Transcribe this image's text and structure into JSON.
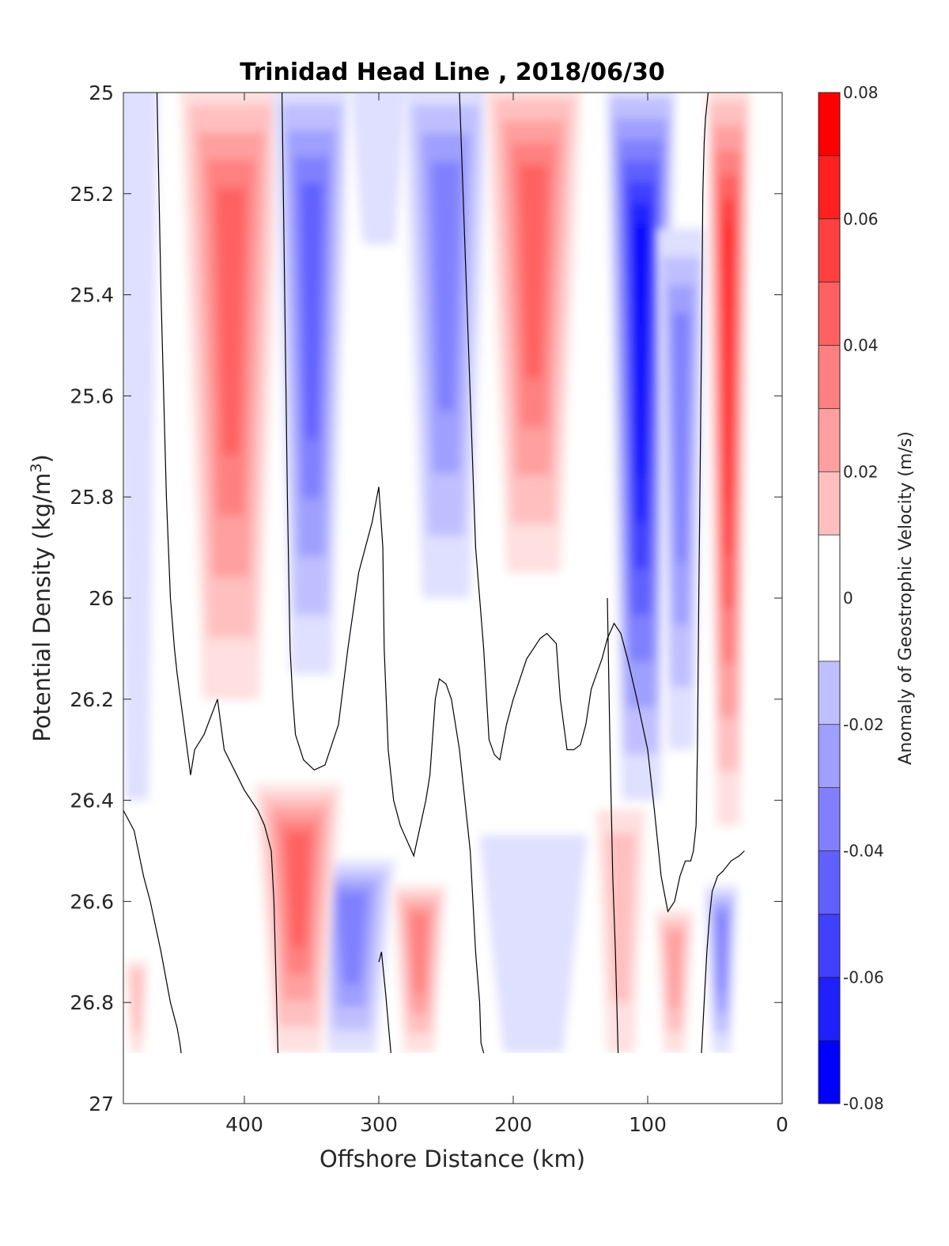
{
  "chart_data": {
    "type": "contourf",
    "title": "Trinidad Head Line , 2018/06/30",
    "xlabel": "Offshore Distance (km)",
    "ylabel": "Potential Density (kg/m3)",
    "ylabel_main": "Potential Density (kg/m",
    "ylabel_sup": "3",
    "ylabel_close": ")",
    "xlim": [
      490,
      0
    ],
    "ylim": [
      27,
      25
    ],
    "y_reversed": true,
    "x_reversed": true,
    "x_ticks": [
      400,
      300,
      200,
      100,
      0
    ],
    "x_tick_labels": [
      "400",
      "300",
      "200",
      "100",
      "0"
    ],
    "y_ticks": [
      25,
      25.2,
      25.4,
      25.6,
      25.8,
      26,
      26.2,
      26.4,
      26.6,
      26.8,
      27
    ],
    "y_tick_labels": [
      "25",
      "25.2",
      "25.4",
      "25.6",
      "25.8",
      "26",
      "26.2",
      "26.4",
      "26.6",
      "26.8",
      "27"
    ],
    "data_y_max": 26.9,
    "colorbar": {
      "label": "Anomaly of Geostrophic Velocity (m/s)",
      "range": [
        -0.08,
        0.08
      ],
      "levels": [
        -0.08,
        -0.07,
        -0.06,
        -0.05,
        -0.04,
        -0.03,
        -0.02,
        -0.01,
        0.01,
        0.02,
        0.03,
        0.04,
        0.05,
        0.06,
        0.07,
        0.08
      ],
      "ticks": [
        0.08,
        0.06,
        0.04,
        0.02,
        0,
        -0.02,
        -0.04,
        -0.06,
        -0.08
      ],
      "tick_labels": [
        "0.08",
        "0.06",
        "0.04",
        "0.02",
        "0",
        "-0.02",
        "-0.04",
        "-0.06",
        "-0.08"
      ]
    },
    "colors": {
      "neg_max": "#0000ff",
      "pos_max": "#ff0000",
      "zero": "#ffffff",
      "contour": "#000000"
    },
    "regions": [
      {
        "sign": -1,
        "x": 480,
        "y0": 25.0,
        "y1": 26.4,
        "peak": -0.012,
        "w": 16
      },
      {
        "sign": 1,
        "x": 410,
        "y0": 25.0,
        "y1": 26.2,
        "peak": 0.045,
        "w": 38
      },
      {
        "sign": -1,
        "x": 350,
        "y0": 25.0,
        "y1": 26.15,
        "peak": -0.048,
        "w": 28
      },
      {
        "sign": -1,
        "x": 300,
        "y0": 25.0,
        "y1": 25.3,
        "peak": -0.012,
        "w": 22
      },
      {
        "sign": -1,
        "x": 250,
        "y0": 25.0,
        "y1": 26.0,
        "peak": -0.035,
        "w": 32
      },
      {
        "sign": 1,
        "x": 185,
        "y0": 25.0,
        "y1": 25.95,
        "peak": 0.045,
        "w": 36
      },
      {
        "sign": -1,
        "x": 105,
        "y0": 25.0,
        "y1": 26.4,
        "peak": -0.075,
        "w": 26
      },
      {
        "sign": -1,
        "x": 75,
        "y0": 25.3,
        "y1": 26.3,
        "peak": -0.038,
        "w": 18
      },
      {
        "sign": 1,
        "x": 40,
        "y0": 25.0,
        "y1": 26.45,
        "peak": 0.068,
        "w": 16
      },
      {
        "sign": -1,
        "x": 320,
        "y0": 26.55,
        "y1": 26.9,
        "peak": -0.035,
        "w": 32
      },
      {
        "sign": 1,
        "x": 360,
        "y0": 26.4,
        "y1": 26.9,
        "peak": 0.045,
        "w": 32
      },
      {
        "sign": 1,
        "x": 270,
        "y0": 26.6,
        "y1": 26.9,
        "peak": 0.035,
        "w": 20
      },
      {
        "sign": -1,
        "x": 185,
        "y0": 26.5,
        "y1": 26.9,
        "peak": -0.014,
        "w": 40
      },
      {
        "sign": 1,
        "x": 120,
        "y0": 26.45,
        "y1": 26.9,
        "peak": 0.022,
        "w": 18
      },
      {
        "sign": 1,
        "x": 80,
        "y0": 26.65,
        "y1": 26.9,
        "peak": 0.025,
        "w": 14
      },
      {
        "sign": -1,
        "x": 45,
        "y0": 26.6,
        "y1": 26.9,
        "peak": -0.035,
        "w": 12
      },
      {
        "sign": 1,
        "x": 480,
        "y0": 26.75,
        "y1": 26.9,
        "peak": 0.015,
        "w": 8
      }
    ],
    "zero_contours": [
      {
        "x": [
          465,
          462,
          458,
          455,
          452,
          450,
          445,
          440,
          437,
          430,
          420,
          415,
          400,
          390,
          385,
          380,
          378,
          377,
          376,
          375
        ],
        "y": [
          25,
          25.4,
          25.8,
          26.0,
          26.1,
          26.15,
          26.25,
          26.35,
          26.3,
          26.27,
          26.2,
          26.3,
          26.38,
          26.42,
          26.45,
          26.5,
          26.6,
          26.7,
          26.8,
          26.9
        ]
      },
      {
        "x": [
          372,
          370,
          368,
          366,
          364,
          362,
          356,
          348,
          340,
          330,
          323,
          315,
          305,
          300,
          297,
          296,
          293,
          289,
          284,
          274,
          265,
          262,
          258,
          255,
          250,
          246,
          240,
          232,
          228,
          225,
          224,
          222
        ],
        "y": [
          25,
          25.4,
          25.8,
          26.1,
          26.2,
          26.27,
          26.32,
          26.34,
          26.33,
          26.25,
          26.1,
          25.95,
          25.85,
          25.78,
          25.9,
          26.1,
          26.3,
          26.4,
          26.45,
          26.51,
          26.4,
          26.35,
          26.2,
          26.16,
          26.17,
          26.2,
          26.3,
          26.5,
          26.7,
          26.8,
          26.88,
          26.9
        ]
      },
      {
        "x": [
          240,
          236,
          232,
          228,
          222,
          218,
          214,
          210,
          205,
          200,
          195,
          190,
          185,
          180,
          175,
          168,
          165,
          160,
          155,
          150,
          146,
          142,
          138,
          134,
          130,
          125,
          120,
          115,
          108,
          100,
          95,
          90,
          85,
          80,
          76,
          72,
          68,
          66,
          64,
          63,
          62,
          60,
          59,
          58,
          57,
          55
        ],
        "y": [
          25,
          25.3,
          25.6,
          25.9,
          26.1,
          26.28,
          26.31,
          26.32,
          26.25,
          26.2,
          26.16,
          26.12,
          26.1,
          26.08,
          26.07,
          26.09,
          26.2,
          26.3,
          26.3,
          26.29,
          26.25,
          26.18,
          26.15,
          26.12,
          26.08,
          26.05,
          26.07,
          26.12,
          26.2,
          26.3,
          26.42,
          26.55,
          26.62,
          26.6,
          26.55,
          26.52,
          26.52,
          26.5,
          26.45,
          26.3,
          26.0,
          25.5,
          25.2,
          25.1,
          25.05,
          25.0
        ]
      },
      {
        "x": [
          490,
          482,
          475,
          470,
          462,
          455,
          450,
          448,
          447
        ],
        "y": [
          26.42,
          26.46,
          26.55,
          26.6,
          26.7,
          26.8,
          26.85,
          26.88,
          26.9
        ]
      },
      {
        "x": [
          300,
          298,
          295,
          293,
          292,
          291
        ],
        "y": [
          26.72,
          26.7,
          26.78,
          26.84,
          26.87,
          26.9
        ]
      },
      {
        "x": [
          130,
          128,
          126,
          124,
          123,
          122
        ],
        "y": [
          26.0,
          26.3,
          26.55,
          26.7,
          26.8,
          26.9
        ]
      },
      {
        "x": [
          60,
          58,
          56,
          54,
          52,
          48,
          44,
          38,
          32,
          28
        ],
        "y": [
          26.9,
          26.8,
          26.7,
          26.63,
          26.58,
          26.55,
          26.54,
          26.52,
          26.51,
          26.5
        ]
      }
    ]
  }
}
